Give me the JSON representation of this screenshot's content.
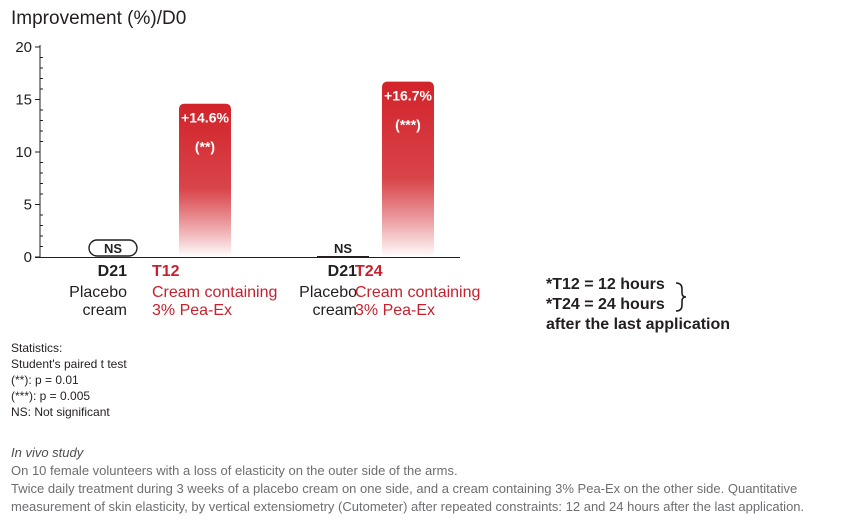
{
  "chart_data": {
    "type": "bar",
    "ylabel": "Improvement (%)/D0",
    "ylim": [
      0,
      20
    ],
    "yticks": [
      "0",
      "5",
      "10",
      "15",
      "20"
    ],
    "groups": [
      {
        "label_code": "D21",
        "label_lines": [
          "Placebo",
          "cream"
        ],
        "value": 0,
        "annotation": "NS",
        "annotation_style": "outlined"
      },
      {
        "label_code": "T12",
        "label_lines": [
          "Cream containing",
          "3% Pea-Ex"
        ],
        "value": 14.6,
        "value_label": "+14.6%",
        "significance": "(**)"
      },
      {
        "label_code": "D21",
        "label_lines": [
          "Placebo",
          "cream"
        ],
        "value": 0,
        "annotation": "NS",
        "annotation_style": "plain"
      },
      {
        "label_code": "T24",
        "label_lines": [
          "Cream containing",
          "3% Pea-Ex"
        ],
        "value": 16.7,
        "value_label": "+16.7%",
        "significance": "(***)"
      }
    ],
    "colors": {
      "bar_top": "#d2232a",
      "bar_bottom": "#ffffff",
      "axis": "#231f20",
      "accent_text": "#c8202f"
    }
  },
  "key": {
    "line1": "*T12 = 12 hours",
    "line2": "*T24 = 24 hours",
    "line3": "after the last application"
  },
  "stats": {
    "title": "Statistics:",
    "line1": "Student's paired t test",
    "line2": "(**): p = 0.01",
    "line3": "(***): p = 0.005",
    "line4": "NS: Not significant"
  },
  "study": {
    "title": "In vivo study",
    "line1": "On 10 female volunteers with a loss of elasticity on the outer side of the arms.",
    "line2": "Twice daily treatment during 3 weeks of a placebo cream on one side, and a cream containing 3% Pea-Ex on the other side. Quantitative measurement of skin elasticity, by vertical extensiometry (Cutometer) after repeated constraints: 12 and 24 hours after the last application."
  }
}
